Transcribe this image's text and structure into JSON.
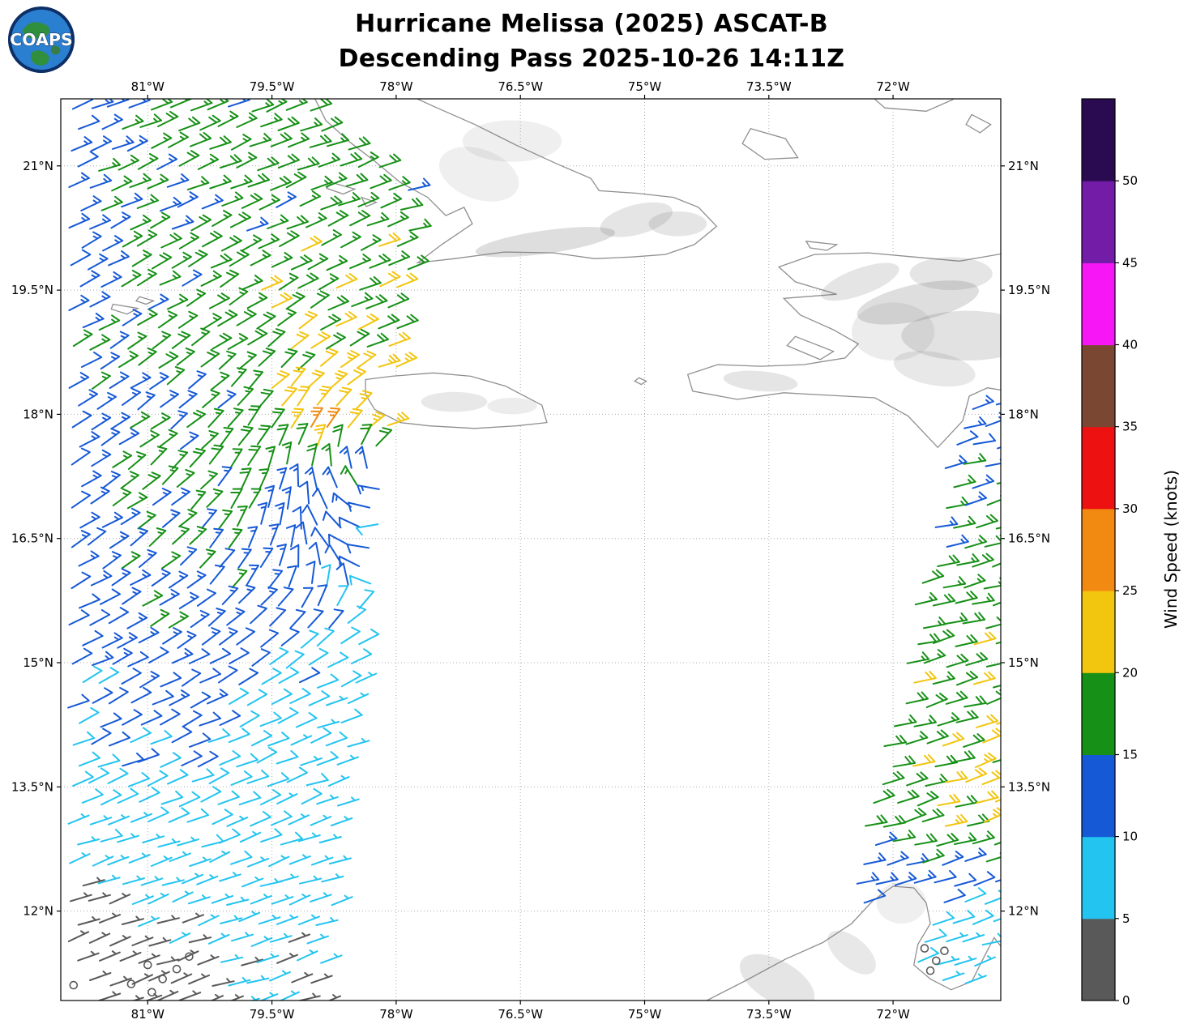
{
  "logo": {
    "text": "COAPS"
  },
  "chart_data": {
    "type": "wind_barb_map",
    "title": "Hurricane Melissa (2025) ASCAT-B",
    "subtitle": "Descending Pass 2025-10-26 14:11Z",
    "colorbar": {
      "label": "Wind Speed (knots)",
      "ticks": [
        0,
        5,
        10,
        15,
        20,
        25,
        30,
        35,
        40,
        45,
        50
      ],
      "vmax": 55,
      "colors": [
        "#595959",
        "#24c4f0",
        "#1659d6",
        "#169016",
        "#f2c50f",
        "#f28a12",
        "#ee1111",
        "#7a4832",
        "#f616f6",
        "#731ca8",
        "#2a0b52"
      ]
    },
    "map": {
      "lon_min": -82.05,
      "lon_max": -70.7,
      "lat_min": 10.92,
      "lat_max": 21.81,
      "lon_ticks": [
        -81,
        -79.5,
        -78,
        -76.5,
        -75,
        -73.5,
        -72
      ],
      "lon_tick_labels": [
        "81°W",
        "79.5°W",
        "78°W",
        "76.5°W",
        "75°W",
        "73.5°W",
        "72°W"
      ],
      "lat_ticks": [
        12,
        13.5,
        15,
        16.5,
        18,
        19.5,
        21
      ],
      "lat_tick_labels": [
        "12°N",
        "13.5°N",
        "15°N",
        "16.5°N",
        "18°N",
        "19.5°N",
        "21°N"
      ]
    },
    "flow": {
      "center": {
        "lon": -78.1,
        "lat": 17.35
      },
      "inflow_deg": 22,
      "vortex_radius": 2.2,
      "background_toward": [
        -0.95,
        -0.31
      ]
    },
    "sample_spacing": 0.24,
    "barb": {
      "staff": 27,
      "full": 11,
      "half": 5.5,
      "space": 5,
      "width": 2
    },
    "speed_grid": {
      "lon0": -82,
      "dlon": 1,
      "lat0": 22,
      "dlat": 1,
      "values": [
        [
          14,
          16,
          16,
          17,
          17,
          16,
          15,
          15,
          15,
          15,
          14,
          14,
          14
        ],
        [
          13,
          16,
          17,
          17,
          17,
          16,
          15,
          15,
          15,
          15,
          14,
          14,
          14
        ],
        [
          12,
          16,
          17,
          18,
          18,
          16,
          15,
          15,
          15,
          14,
          14,
          13,
          13
        ],
        [
          14,
          16,
          18,
          20,
          21,
          18,
          16,
          15,
          15,
          14,
          14,
          13,
          13
        ],
        [
          13,
          15,
          17,
          25,
          22,
          18,
          16,
          15,
          14,
          14,
          13,
          12,
          12
        ],
        [
          13,
          16,
          16,
          13,
          11,
          12,
          13,
          13,
          14,
          15,
          15,
          16,
          15
        ],
        [
          12,
          15,
          14,
          11,
          9,
          10,
          12,
          13,
          14,
          15,
          16,
          17,
          17
        ],
        [
          11,
          13,
          12,
          9,
          7,
          9,
          11,
          13,
          15,
          16,
          17,
          19,
          19
        ],
        [
          9,
          11,
          10,
          8,
          6,
          8,
          10,
          12,
          14,
          16,
          18,
          21,
          21
        ],
        [
          7,
          8,
          8,
          7,
          6,
          7,
          9,
          11,
          13,
          15,
          18,
          21,
          20
        ],
        [
          4,
          5,
          6,
          6,
          5,
          6,
          8,
          9,
          10,
          12,
          10,
          8,
          12
        ],
        [
          2,
          3,
          5,
          5,
          5,
          5,
          7,
          8,
          9,
          10,
          6,
          6,
          10
        ]
      ]
    },
    "swaths": [
      {
        "side": "left",
        "ref_lat": 11,
        "edge_lon_at_ref": -78.9,
        "edge_slope": 0.12
      },
      {
        "side": "right",
        "ref_lat": 12,
        "edge_lon_at_ref": -72.59,
        "edge_slope": 0.228,
        "lat_max": 18.45
      }
    ],
    "calm_spots": [
      [
        -81.0,
        11.35
      ],
      [
        -80.82,
        11.18
      ],
      [
        -80.95,
        11.02
      ],
      [
        -80.65,
        11.3
      ],
      [
        -81.2,
        11.12
      ],
      [
        -80.5,
        11.45
      ],
      [
        -71.62,
        11.55
      ],
      [
        -71.48,
        11.4
      ],
      [
        -71.55,
        11.28
      ],
      [
        -71.38,
        11.52
      ]
    ],
    "coastlines": {
      "cuba": [
        [
          -79.05,
          21.95
        ],
        [
          -78.85,
          21.55
        ],
        [
          -78.55,
          21.28
        ],
        [
          -78.25,
          21.05
        ],
        [
          -77.95,
          20.8
        ],
        [
          -77.62,
          20.62
        ],
        [
          -77.4,
          20.4
        ],
        [
          -77.18,
          20.5
        ],
        [
          -77.08,
          20.3
        ],
        [
          -77.45,
          20.05
        ],
        [
          -77.74,
          19.83
        ],
        [
          -77.3,
          19.88
        ],
        [
          -76.7,
          19.96
        ],
        [
          -76.1,
          19.95
        ],
        [
          -75.6,
          19.88
        ],
        [
          -75.15,
          19.9
        ],
        [
          -74.75,
          19.93
        ],
        [
          -74.4,
          20.05
        ],
        [
          -74.13,
          20.27
        ],
        [
          -74.35,
          20.5
        ],
        [
          -74.65,
          20.62
        ],
        [
          -75.1,
          20.67
        ],
        [
          -75.55,
          20.7
        ],
        [
          -75.65,
          20.85
        ],
        [
          -76.05,
          21.02
        ],
        [
          -76.55,
          21.25
        ],
        [
          -77.05,
          21.5
        ],
        [
          -77.55,
          21.72
        ],
        [
          -78.05,
          21.95
        ]
      ],
      "jamaica": [
        [
          -78.37,
          18.42
        ],
        [
          -78.05,
          18.46
        ],
        [
          -77.55,
          18.5
        ],
        [
          -77.1,
          18.46
        ],
        [
          -76.68,
          18.34
        ],
        [
          -76.24,
          18.11
        ],
        [
          -76.18,
          17.9
        ],
        [
          -76.55,
          17.86
        ],
        [
          -77.05,
          17.83
        ],
        [
          -77.6,
          17.86
        ],
        [
          -77.95,
          17.9
        ],
        [
          -78.26,
          18.06
        ],
        [
          -78.37,
          18.24
        ]
      ],
      "hispaniola": [
        [
          -70.62,
          19.95
        ],
        [
          -71.2,
          19.85
        ],
        [
          -71.75,
          19.9
        ],
        [
          -72.3,
          19.95
        ],
        [
          -72.95,
          19.93
        ],
        [
          -73.38,
          19.78
        ],
        [
          -73.18,
          19.6
        ],
        [
          -72.68,
          19.45
        ],
        [
          -73.32,
          19.4
        ],
        [
          -73.12,
          19.2
        ],
        [
          -72.72,
          19.02
        ],
        [
          -72.42,
          18.85
        ],
        [
          -72.58,
          18.68
        ],
        [
          -73.08,
          18.6
        ],
        [
          -73.6,
          18.58
        ],
        [
          -74.12,
          18.6
        ],
        [
          -74.48,
          18.48
        ],
        [
          -74.42,
          18.28
        ],
        [
          -73.88,
          18.18
        ],
        [
          -73.32,
          18.26
        ],
        [
          -72.78,
          18.23
        ],
        [
          -72.22,
          18.2
        ],
        [
          -71.82,
          17.98
        ],
        [
          -71.46,
          17.6
        ],
        [
          -71.16,
          17.92
        ],
        [
          -71.08,
          18.22
        ],
        [
          -70.86,
          18.32
        ],
        [
          -70.62,
          18.28
        ]
      ],
      "tortuga": [
        [
          -73.05,
          20.09
        ],
        [
          -72.68,
          20.05
        ],
        [
          -72.8,
          19.98
        ],
        [
          -73.0,
          20.01
        ]
      ],
      "gonave": [
        [
          -73.18,
          18.94
        ],
        [
          -72.72,
          18.76
        ],
        [
          -72.88,
          18.66
        ],
        [
          -73.28,
          18.83
        ]
      ],
      "great_inagua": [
        [
          -73.72,
          21.45
        ],
        [
          -73.3,
          21.33
        ],
        [
          -73.15,
          21.1
        ],
        [
          -73.55,
          21.08
        ],
        [
          -73.82,
          21.27
        ]
      ],
      "caicos": [
        [
          -72.35,
          21.92
        ],
        [
          -72.1,
          21.7
        ],
        [
          -71.6,
          21.66
        ],
        [
          -71.28,
          21.8
        ],
        [
          -71.2,
          21.92
        ]
      ],
      "east_cay": [
        [
          -71.05,
          21.62
        ],
        [
          -70.82,
          21.5
        ],
        [
          -70.95,
          21.4
        ],
        [
          -71.12,
          21.5
        ]
      ],
      "grand_cayman": [
        [
          -81.42,
          19.33
        ],
        [
          -81.12,
          19.28
        ],
        [
          -81.25,
          19.21
        ],
        [
          -81.44,
          19.27
        ]
      ],
      "little_cayman": [
        [
          -81.1,
          19.42
        ],
        [
          -80.93,
          19.37
        ],
        [
          -81.02,
          19.33
        ],
        [
          -81.14,
          19.37
        ]
      ],
      "jardines_1": [
        [
          -78.78,
          20.8
        ],
        [
          -78.5,
          20.72
        ],
        [
          -78.64,
          20.66
        ],
        [
          -78.84,
          20.73
        ]
      ],
      "jardines_2": [
        [
          -78.42,
          20.62
        ],
        [
          -78.24,
          20.56
        ],
        [
          -78.36,
          20.51
        ]
      ],
      "navassa": [
        [
          -75.07,
          18.44
        ],
        [
          -74.98,
          18.4
        ],
        [
          -75.04,
          18.36
        ],
        [
          -75.12,
          18.4
        ]
      ],
      "south_america": [
        [
          -74.35,
          10.8
        ],
        [
          -74.25,
          10.92
        ],
        [
          -73.8,
          11.15
        ],
        [
          -73.3,
          11.42
        ],
        [
          -72.85,
          11.62
        ],
        [
          -72.5,
          11.85
        ],
        [
          -72.25,
          12.12
        ],
        [
          -72.0,
          12.3
        ],
        [
          -71.75,
          12.28
        ],
        [
          -71.6,
          12.1
        ],
        [
          -71.55,
          11.85
        ],
        [
          -71.7,
          11.6
        ],
        [
          -71.75,
          11.35
        ],
        [
          -71.55,
          11.18
        ],
        [
          -71.3,
          11.05
        ],
        [
          -71.05,
          11.15
        ],
        [
          -70.9,
          11.45
        ],
        [
          -70.78,
          11.68
        ],
        [
          -70.68,
          11.55
        ],
        [
          -70.62,
          10.8
        ]
      ]
    },
    "terrain_shading": [
      [
        -71.7,
        19.35,
        0.75,
        0.22,
        -12,
        0.25
      ],
      [
        -72.4,
        19.6,
        0.5,
        0.16,
        -20,
        0.2
      ],
      [
        -71.3,
        19.7,
        0.5,
        0.2,
        0,
        0.2
      ],
      [
        -71.1,
        18.95,
        0.8,
        0.3,
        0,
        0.22
      ],
      [
        -71.5,
        18.55,
        0.5,
        0.2,
        10,
        0.18
      ],
      [
        -73.6,
        18.4,
        0.45,
        0.12,
        5,
        0.2
      ],
      [
        -72.0,
        19.0,
        0.5,
        0.35,
        0,
        0.15
      ],
      [
        -76.2,
        20.08,
        0.85,
        0.14,
        -8,
        0.25
      ],
      [
        -75.1,
        20.35,
        0.45,
        0.18,
        -15,
        0.2
      ],
      [
        -74.6,
        20.3,
        0.35,
        0.15,
        0,
        0.2
      ],
      [
        -77.0,
        20.9,
        0.5,
        0.3,
        20,
        0.12
      ],
      [
        -76.6,
        21.3,
        0.6,
        0.25,
        0,
        0.12
      ],
      [
        -77.3,
        18.15,
        0.4,
        0.12,
        0,
        0.18
      ],
      [
        -76.6,
        18.1,
        0.3,
        0.1,
        0,
        0.15
      ],
      [
        -73.4,
        11.15,
        0.5,
        0.25,
        30,
        0.2
      ],
      [
        -72.5,
        11.5,
        0.35,
        0.18,
        40,
        0.18
      ],
      [
        -71.9,
        12.1,
        0.3,
        0.25,
        0,
        0.12
      ]
    ]
  }
}
